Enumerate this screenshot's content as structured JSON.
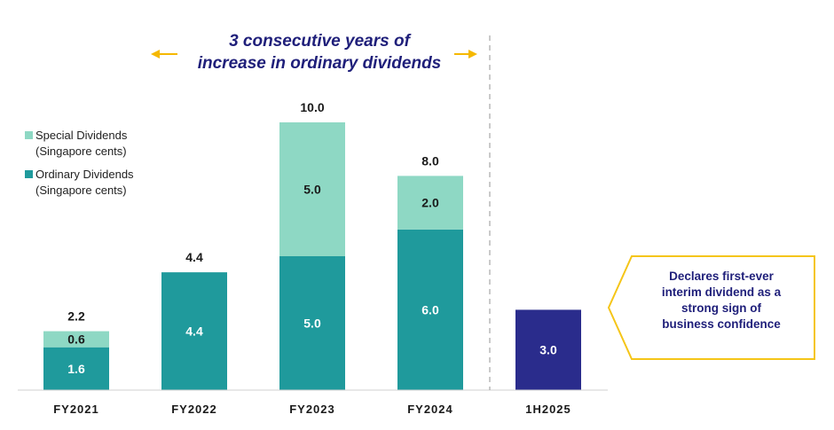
{
  "headline": {
    "line1": "3 consecutive years of",
    "line2": "increase in ordinary dividends"
  },
  "callout": {
    "lines": [
      "Declares first-ever",
      "interim dividend as a",
      "strong sign of",
      "business confidence"
    ]
  },
  "colors": {
    "special": "#8ed8c4",
    "ordinary": "#1f9a9c",
    "interim": "#2a2c8c",
    "arrow": "#f5b800",
    "callout_border": "#f5c518",
    "headline": "#1f1f7a",
    "divider": "#b8b8b8",
    "axis": "#d0d0d0"
  },
  "chart_data": {
    "type": "bar",
    "stacked": true,
    "unit": "Singapore cents",
    "categories": [
      "FY2021",
      "FY2022",
      "FY2023",
      "FY2024",
      "1H2025"
    ],
    "series": [
      {
        "name": "Ordinary Dividends",
        "unit_label": "(Singapore cents)",
        "values": [
          1.6,
          4.4,
          5.0,
          6.0,
          null
        ]
      },
      {
        "name": "Special Dividends",
        "unit_label": "(Singapore cents)",
        "values": [
          0.6,
          null,
          5.0,
          2.0,
          null
        ]
      },
      {
        "name": "Interim Dividend",
        "values": [
          null,
          null,
          null,
          null,
          3.0
        ]
      }
    ],
    "segment_labels": [
      [
        "1.6",
        "4.4",
        "5.0",
        "6.0",
        null
      ],
      [
        "0.6",
        null,
        "5.0",
        "2.0",
        null
      ],
      [
        null,
        null,
        null,
        null,
        "3.0"
      ]
    ],
    "totals": [
      "2.2",
      "4.4",
      "10.0",
      "8.0",
      null
    ],
    "ylim": [
      0,
      10.0
    ]
  }
}
